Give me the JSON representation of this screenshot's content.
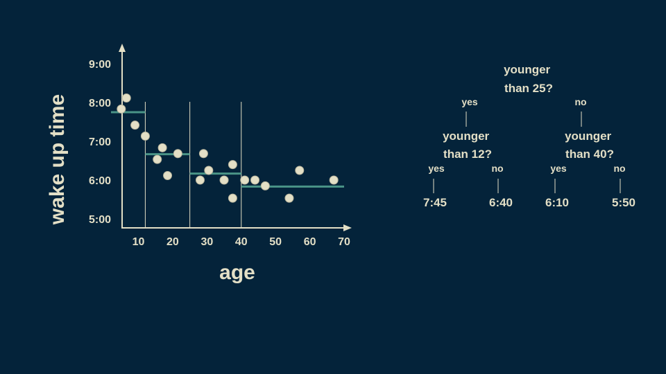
{
  "chart_data": {
    "type": "scatter",
    "title": "",
    "xlabel": "age",
    "ylabel": "wake up time",
    "xlim": [
      2,
      70
    ],
    "ylim": [
      "4:30",
      "9:30"
    ],
    "x_ticks": [
      10,
      20,
      30,
      40,
      50,
      60,
      70
    ],
    "y_ticks": [
      "9:00",
      "8:00",
      "7:00",
      "6:00",
      "5:00"
    ],
    "grid": false,
    "legend": "none",
    "points": [
      {
        "x": 5,
        "y": "7:50"
      },
      {
        "x": 6.5,
        "y": "8:07"
      },
      {
        "x": 9,
        "y": "7:25"
      },
      {
        "x": 12,
        "y": "7:08"
      },
      {
        "x": 15.5,
        "y": "6:32"
      },
      {
        "x": 17,
        "y": "6:50"
      },
      {
        "x": 18.5,
        "y": "6:07"
      },
      {
        "x": 21.5,
        "y": "6:41"
      },
      {
        "x": 28,
        "y": "6:00"
      },
      {
        "x": 29,
        "y": "6:41"
      },
      {
        "x": 30.5,
        "y": "6:15"
      },
      {
        "x": 35,
        "y": "6:00"
      },
      {
        "x": 37.5,
        "y": "6:24"
      },
      {
        "x": 37.5,
        "y": "5:32"
      },
      {
        "x": 41,
        "y": "6:00"
      },
      {
        "x": 44,
        "y": "6:00"
      },
      {
        "x": 47,
        "y": "5:51"
      },
      {
        "x": 54,
        "y": "5:32"
      },
      {
        "x": 57,
        "y": "6:15"
      },
      {
        "x": 67,
        "y": "6:00"
      }
    ],
    "split_lines": [
      12,
      25,
      40
    ],
    "segments": [
      {
        "x0": 2,
        "x1": 12,
        "y": "7:45"
      },
      {
        "x0": 12,
        "x1": 25,
        "y": "6:40"
      },
      {
        "x0": 25,
        "x1": 40,
        "y": "6:10"
      },
      {
        "x0": 40,
        "x1": 70,
        "y": "5:50"
      }
    ],
    "colors": {
      "background": "#04233a",
      "foreground": "#e3dfc6",
      "step": "#4a9487",
      "point_fill": "#e3dfc6",
      "point_stroke": "#b8b49c"
    }
  },
  "tree": {
    "root": {
      "line1": "younger",
      "line2": "than 25?"
    },
    "root_yes": "yes",
    "root_no": "no",
    "left": {
      "line1": "younger",
      "line2": "than 12?"
    },
    "right": {
      "line1": "younger",
      "line2": "than 40?"
    },
    "left_yes": "yes",
    "left_no": "no",
    "right_yes": "yes",
    "right_no": "no",
    "leaves": [
      "7:45",
      "6:40",
      "6:10",
      "5:50"
    ]
  }
}
